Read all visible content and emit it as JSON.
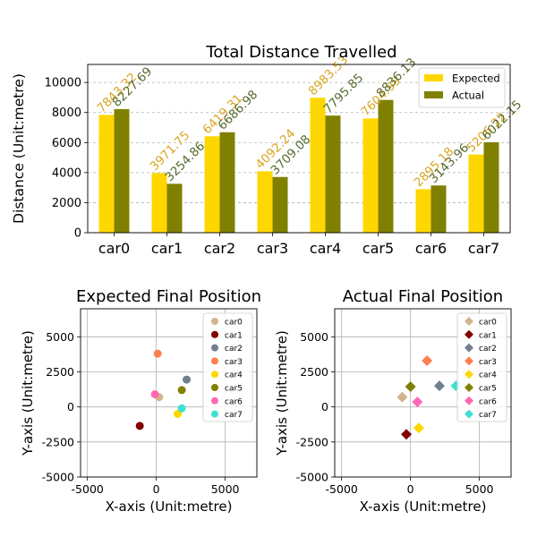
{
  "chart_data": [
    {
      "type": "bar",
      "title": "Total Distance Travelled",
      "xlabel": "",
      "ylabel": "Distance (Unit:metre)",
      "categories": [
        "car0",
        "car1",
        "car2",
        "car3",
        "car4",
        "car5",
        "car6",
        "car7"
      ],
      "ylim": [
        0,
        11200
      ],
      "yticks": [
        0,
        2000,
        4000,
        6000,
        8000,
        10000
      ],
      "grid": "y-dashed",
      "legend_position": "top-right",
      "series": [
        {
          "name": "Expected",
          "color": "#ffd700",
          "label_color": "#daa520",
          "values": [
            7843.32,
            3971.75,
            6419.31,
            4092.24,
            8983.53,
            7604.99,
            2895.18,
            5206.22
          ],
          "labels": [
            "7843.32",
            "3971.75",
            "6419.31",
            "4092.24",
            "8983.53",
            "7604.99",
            "2895.18",
            "5206.22"
          ]
        },
        {
          "name": "Actual",
          "color": "#808000",
          "label_color": "#556b2f",
          "values": [
            8227.69,
            3254.86,
            6686.98,
            3709.08,
            7795.85,
            8836.13,
            3143.96,
            6022.15
          ],
          "labels": [
            "8227.69",
            "3254.86",
            "6686.98",
            "3709.08",
            "7795.85",
            "8836.13",
            "3143.96",
            "6022.15"
          ]
        }
      ]
    },
    {
      "type": "scatter",
      "title": "Expected Final Position",
      "xlabel": "X-axis (Unit:metre)",
      "ylabel": "Y-axis (Unit:metre)",
      "xlim": [
        -5500,
        7300
      ],
      "ylim": [
        -5000,
        7000
      ],
      "xticks": [
        -5000,
        0,
        5000
      ],
      "yticks": [
        -5000,
        -2500,
        0,
        2500,
        5000
      ],
      "grid": true,
      "marker": "circle",
      "legend_position": "top-right",
      "series": [
        {
          "name": "car0",
          "color": "#d2b48c",
          "x": 200,
          "y": 700
        },
        {
          "name": "car1",
          "color": "#800000",
          "x": -1200,
          "y": -1350
        },
        {
          "name": "car2",
          "color": "#708090",
          "x": 2200,
          "y": 1950
        },
        {
          "name": "car3",
          "color": "#ff7f50",
          "x": 100,
          "y": 3800
        },
        {
          "name": "car4",
          "color": "#ffd700",
          "x": 1550,
          "y": -500
        },
        {
          "name": "car5",
          "color": "#808000",
          "x": 1850,
          "y": 1200
        },
        {
          "name": "car6",
          "color": "#ff69b4",
          "x": -100,
          "y": 900
        },
        {
          "name": "car7",
          "color": "#40e0d0",
          "x": 1850,
          "y": -100
        }
      ]
    },
    {
      "type": "scatter",
      "title": "Actual Final Position",
      "xlabel": "X-axis (Unit:metre)",
      "ylabel": "Y-axis (Unit:metre)",
      "xlim": [
        -5500,
        7300
      ],
      "ylim": [
        -5000,
        7000
      ],
      "xticks": [
        -5000,
        0,
        5000
      ],
      "yticks": [
        -5000,
        -2500,
        0,
        2500,
        5000
      ],
      "grid": true,
      "marker": "diamond",
      "legend_position": "top-right",
      "series": [
        {
          "name": "car0",
          "color": "#d2b48c",
          "x": -600,
          "y": 700
        },
        {
          "name": "car1",
          "color": "#800000",
          "x": -300,
          "y": -1950
        },
        {
          "name": "car2",
          "color": "#708090",
          "x": 2100,
          "y": 1500
        },
        {
          "name": "car3",
          "color": "#ff7f50",
          "x": 1200,
          "y": 3300
        },
        {
          "name": "car4",
          "color": "#ffd700",
          "x": 600,
          "y": -1500
        },
        {
          "name": "car5",
          "color": "#808000",
          "x": 0,
          "y": 1450
        },
        {
          "name": "car6",
          "color": "#ff69b4",
          "x": 500,
          "y": 350
        },
        {
          "name": "car7",
          "color": "#40e0d0",
          "x": 3300,
          "y": 1500
        }
      ]
    }
  ]
}
